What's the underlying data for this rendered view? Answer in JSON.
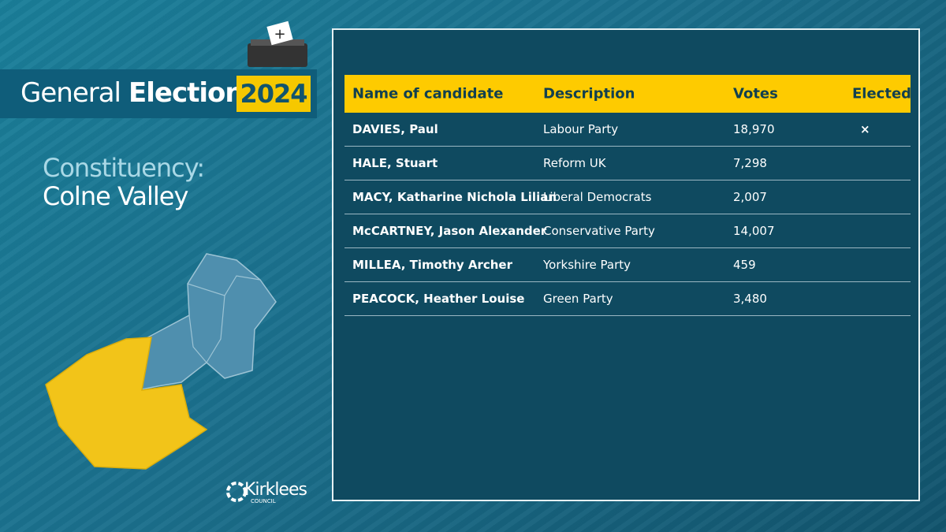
{
  "header": {
    "title_light": "General",
    "title_bold": "Election",
    "year": "2024"
  },
  "constituency": {
    "label": "Constituency:",
    "name": "Colne Valley"
  },
  "logo": {
    "name": "Kirklees",
    "sub": "COUNCIL"
  },
  "table": {
    "columns": [
      "Name of candidate",
      "Description",
      "Votes",
      "Elected"
    ],
    "rows": [
      {
        "name": "DAVIES, Paul",
        "description": "Labour Party",
        "votes": "18,970",
        "elected": "×"
      },
      {
        "name": "HALE, Stuart",
        "description": "Reform UK",
        "votes": "7,298"
      },
      {
        "name": "MACY, Katharine Nichola Lilian",
        "description": "Liberal Democrats",
        "votes": "2,007"
      },
      {
        "name": "McCARTNEY, Jason Alexander",
        "description": "Conservative Party",
        "votes": "14,007"
      },
      {
        "name": "MILLEA, Timothy Archer",
        "description": "Yorkshire Party",
        "votes": "459"
      },
      {
        "name": "PEACOCK, Heather Louise",
        "description": "Green Party",
        "votes": "3,480"
      }
    ]
  }
}
